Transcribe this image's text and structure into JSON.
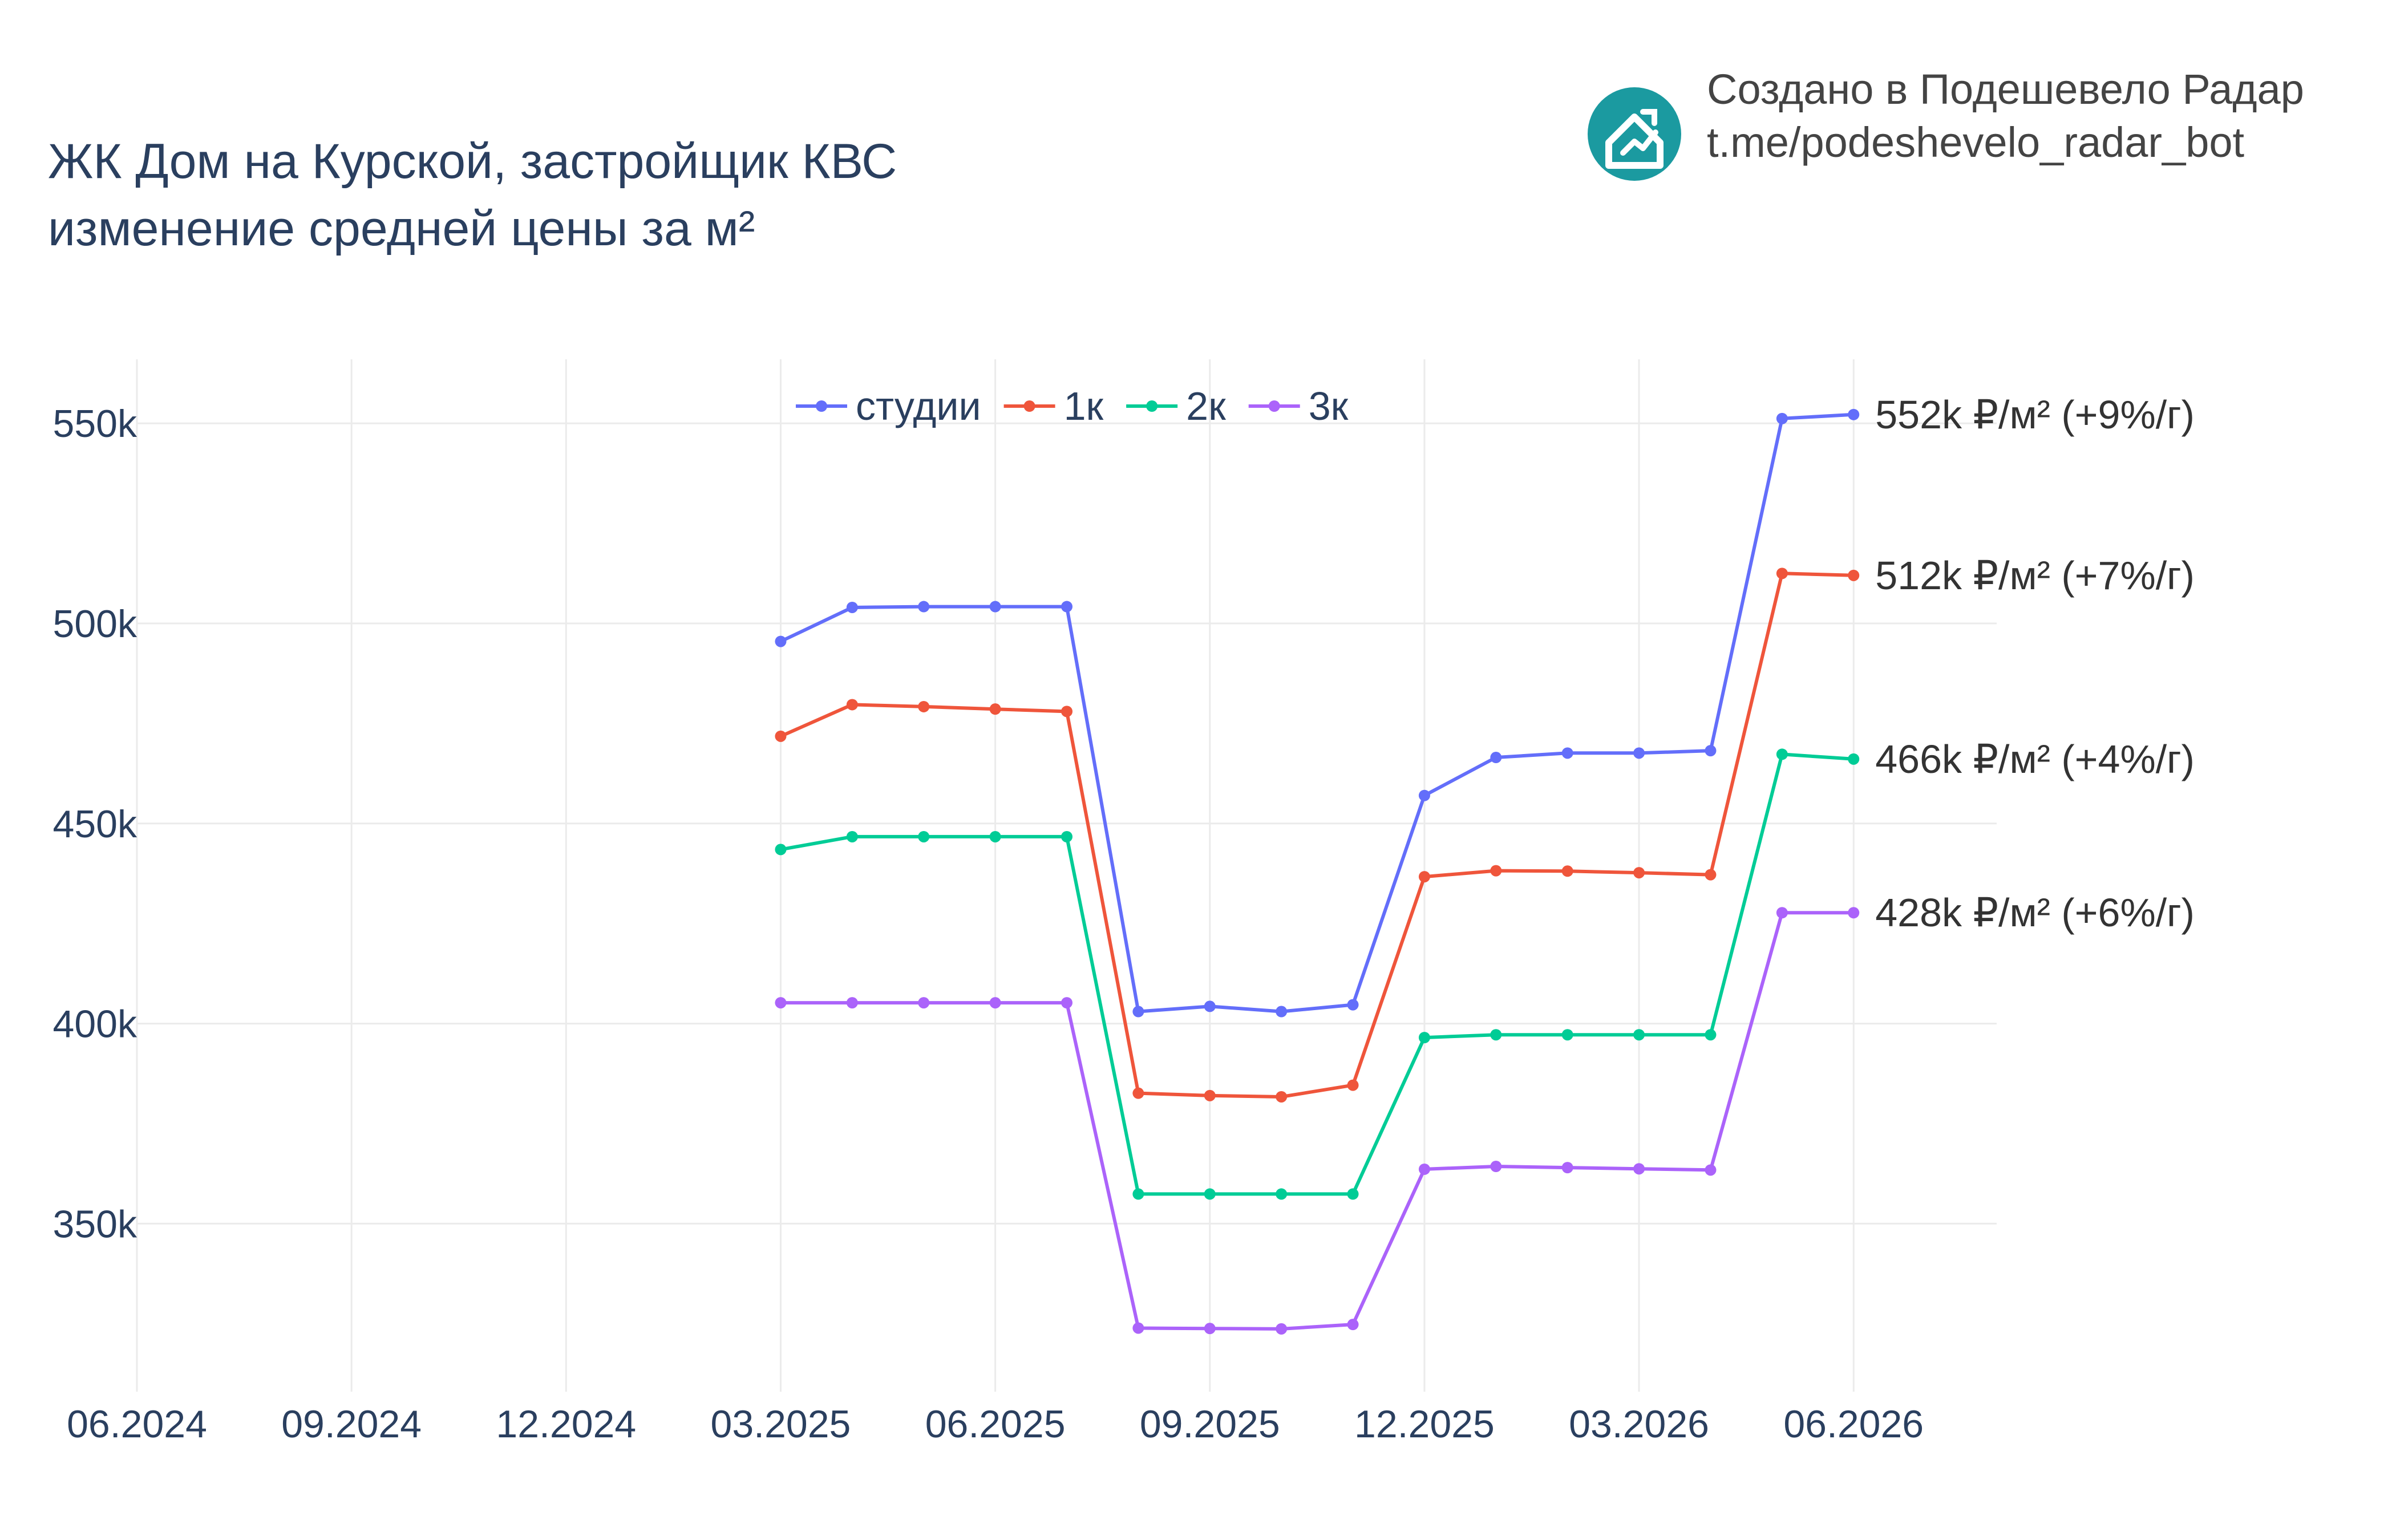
{
  "header": {
    "title_line1": "ЖК Дом на Курской, застройщик КВС",
    "title_line2": "изменение средней цены за м²"
  },
  "credit": {
    "line1": "Создано в Подешевело Радар",
    "line2": "t.me/podeshevelo_radar_bot",
    "logo_icon": "house-chart-icon",
    "logo_color": "#1b9aa0"
  },
  "chart_data": {
    "type": "line",
    "title": "ЖК Дом на Курской, застройщик КВС\nизменение средней цены за м²",
    "xlabel": "",
    "ylabel": "",
    "x_ticks": [
      "06.2024",
      "09.2024",
      "12.2024",
      "03.2025",
      "06.2025",
      "09.2025",
      "12.2025",
      "03.2026",
      "06.2026"
    ],
    "y_ticks": [
      "350k",
      "400k",
      "450k",
      "500k",
      "550k"
    ],
    "y_tick_values": [
      350000,
      400000,
      450000,
      500000,
      550000
    ],
    "ylim": [
      308000,
      566000
    ],
    "xlim": [
      "2024-06",
      "2026-08"
    ],
    "grid": true,
    "legend_position": "top-center",
    "x": [
      "2025-03",
      "2025-04",
      "2025-05",
      "2025-06",
      "2025-07",
      "2025-08",
      "2025-09",
      "2025-10",
      "2025-11",
      "2025-12",
      "2026-01",
      "2026-02",
      "2026-03",
      "2026-04",
      "2026-05",
      "2026-06"
    ],
    "series": [
      {
        "name": "студии",
        "color": "#636efa",
        "values": [
          495500,
          504000,
          504200,
          504200,
          504200,
          403000,
          404300,
          403000,
          404700,
          457000,
          466500,
          467600,
          467600,
          468200,
          551200,
          552200
        ],
        "end_label": "552k ₽/м² (+9%/г)"
      },
      {
        "name": "1к",
        "color": "#ef553b",
        "values": [
          471800,
          479700,
          479200,
          478600,
          478000,
          382600,
          382000,
          381700,
          384600,
          436700,
          438200,
          438100,
          437700,
          437200,
          512500,
          512000
        ],
        "end_label": "512k ₽/м² (+7%/г)"
      },
      {
        "name": "2к",
        "color": "#00cc96",
        "values": [
          443500,
          446700,
          446700,
          446700,
          446700,
          357400,
          357400,
          357400,
          357400,
          396500,
          397200,
          397200,
          397200,
          397200,
          467300,
          466100
        ],
        "end_label": "466k ₽/м² (+4%/г)"
      },
      {
        "name": "3к",
        "color": "#ab63fa",
        "values": [
          405200,
          405200,
          405200,
          405200,
          405200,
          323900,
          323800,
          323700,
          324800,
          363600,
          364300,
          364000,
          363700,
          363400,
          427700,
          427700
        ],
        "end_label": "428k ₽/м² (+6%/г)"
      }
    ]
  }
}
